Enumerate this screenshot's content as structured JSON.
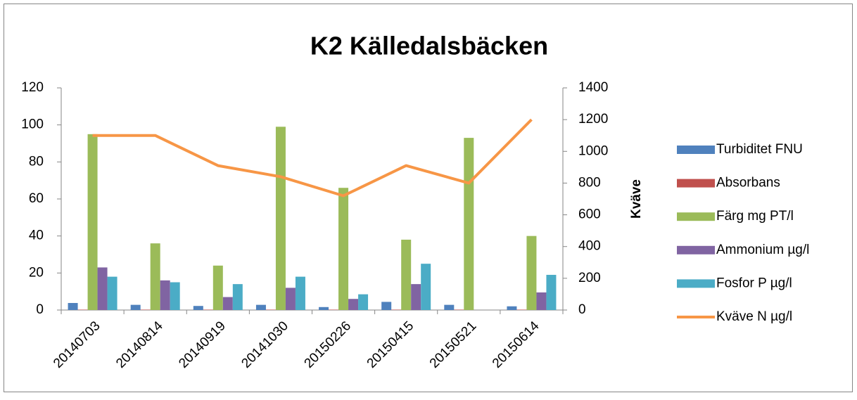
{
  "chart_data": {
    "type": "bar",
    "title": "K2 Källedalsbäcken",
    "y2_label": "Kväve",
    "categories": [
      "20140703",
      "20140814",
      "20140919",
      "20141030",
      "20150226",
      "20150415",
      "20150521",
      "20150614"
    ],
    "series": [
      {
        "name": "Turbiditet FNU",
        "color": "#4f81bd",
        "values": [
          3.8,
          2.8,
          2.2,
          2.8,
          1.6,
          4.4,
          2.8,
          2.0
        ]
      },
      {
        "name": "Absorbans",
        "color": "#c0504d",
        "values": [
          0.2,
          0.2,
          0.2,
          0.2,
          0.2,
          0.2,
          0.2,
          0.2
        ]
      },
      {
        "name": "Färg mg PT/l",
        "color": "#9bbb59",
        "values": [
          95,
          36,
          24,
          99,
          66,
          38,
          93,
          40
        ]
      },
      {
        "name": "Ammonium µg/l",
        "color": "#8064a2",
        "values": [
          23,
          16,
          7,
          12,
          6,
          14,
          null,
          9.5
        ]
      },
      {
        "name": "Fosfor P µg/l",
        "color": "#4bacc6",
        "values": [
          18,
          15,
          14,
          18,
          8.5,
          25,
          null,
          19
        ]
      },
      {
        "name": "Kväve N µg/l",
        "color": "#f79646",
        "type": "line",
        "axis": "y2",
        "values": [
          1100,
          1100,
          910,
          840,
          720,
          910,
          800,
          1200
        ]
      }
    ],
    "ylim": [
      0,
      120
    ],
    "yticks": [
      0,
      20,
      40,
      60,
      80,
      100,
      120
    ],
    "y2lim": [
      0,
      1400
    ],
    "y2ticks": [
      0,
      200,
      400,
      600,
      800,
      1000,
      1200,
      1400
    ],
    "legend": "right"
  }
}
